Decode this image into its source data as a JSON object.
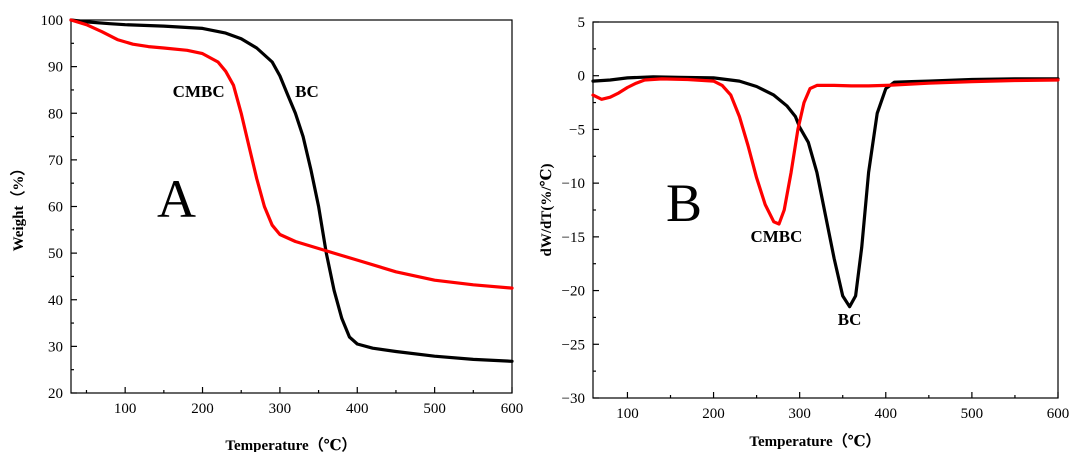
{
  "chart_data": [
    {
      "type": "line",
      "panel_label": "A",
      "xlabel": "Temperature（℃）",
      "ylabel": "Weight（%）",
      "xlim": [
        30,
        600
      ],
      "ylim": [
        20,
        100
      ],
      "xticks": [
        100,
        200,
        300,
        400,
        500,
        600
      ],
      "yticks": [
        20,
        30,
        40,
        50,
        60,
        70,
        80,
        90,
        100
      ],
      "grid": false,
      "legend": "none",
      "series": [
        {
          "name": "BC",
          "color": "#000000",
          "x": [
            30,
            50,
            80,
            100,
            150,
            200,
            230,
            250,
            270,
            290,
            300,
            310,
            320,
            330,
            340,
            350,
            360,
            370,
            380,
            390,
            400,
            420,
            450,
            500,
            550,
            600
          ],
          "y": [
            100,
            99.6,
            99.2,
            99,
            98.7,
            98.2,
            97.2,
            96,
            94,
            91,
            88,
            84,
            80,
            75,
            68,
            60,
            50,
            42,
            36,
            32,
            30.5,
            29.6,
            28.9,
            27.9,
            27.2,
            26.8
          ]
        },
        {
          "name": "CMBC",
          "color": "#ff0000",
          "x": [
            30,
            50,
            70,
            90,
            110,
            130,
            150,
            180,
            200,
            220,
            230,
            240,
            250,
            260,
            270,
            280,
            290,
            300,
            320,
            350,
            380,
            400,
            450,
            500,
            550,
            600
          ],
          "y": [
            100,
            99,
            97.5,
            95.8,
            94.8,
            94.3,
            94,
            93.5,
            92.8,
            91,
            89,
            86,
            80,
            73,
            66,
            60,
            56,
            54,
            52.5,
            51,
            49.5,
            48.5,
            46,
            44.2,
            43.2,
            42.5
          ]
        }
      ],
      "annotations": [
        {
          "text": "CMBC",
          "x": 195,
          "y": 83.5
        },
        {
          "text": "BC",
          "x": 335,
          "y": 83.5
        }
      ]
    },
    {
      "type": "line",
      "panel_label": "B",
      "xlabel": "Temperature（℃）",
      "ylabel": "dW/dT(%/℃)",
      "xlim": [
        60,
        600
      ],
      "ylim": [
        -30,
        5
      ],
      "xticks": [
        100,
        200,
        300,
        400,
        500,
        600
      ],
      "yticks": [
        5,
        0,
        -5,
        -10,
        -15,
        -20,
        -25,
        -30
      ],
      "grid": false,
      "legend": "none",
      "series": [
        {
          "name": "BC",
          "color": "#000000",
          "x": [
            60,
            80,
            100,
            130,
            160,
            200,
            230,
            250,
            270,
            285,
            295,
            300,
            310,
            320,
            330,
            340,
            350,
            358,
            365,
            372,
            380,
            390,
            400,
            410,
            430,
            450,
            500,
            550,
            600
          ],
          "y": [
            -0.5,
            -0.4,
            -0.2,
            -0.1,
            -0.15,
            -0.2,
            -0.5,
            -1,
            -1.8,
            -2.8,
            -3.8,
            -4.8,
            -6.2,
            -9,
            -13,
            -17,
            -20.5,
            -21.5,
            -20.5,
            -16,
            -9,
            -3.5,
            -1.2,
            -0.6,
            -0.55,
            -0.5,
            -0.35,
            -0.3,
            -0.3
          ]
        },
        {
          "name": "CMBC",
          "color": "#ff0000",
          "x": [
            60,
            70,
            80,
            90,
            100,
            110,
            120,
            140,
            170,
            200,
            210,
            220,
            230,
            240,
            250,
            260,
            270,
            276,
            282,
            290,
            298,
            305,
            312,
            320,
            340,
            360,
            380,
            400,
            450,
            500,
            550,
            600
          ],
          "y": [
            -1.8,
            -2.2,
            -2,
            -1.6,
            -1.1,
            -0.7,
            -0.4,
            -0.3,
            -0.35,
            -0.5,
            -0.9,
            -1.8,
            -3.8,
            -6.5,
            -9.5,
            -12,
            -13.6,
            -13.8,
            -12.5,
            -9,
            -5,
            -2.5,
            -1.2,
            -0.9,
            -0.9,
            -0.95,
            -0.95,
            -0.9,
            -0.7,
            -0.55,
            -0.45,
            -0.4
          ]
        }
      ],
      "annotations": [
        {
          "text": "CMBC",
          "x": 273,
          "y": -15.5
        },
        {
          "text": "BC",
          "x": 358,
          "y": -23.2
        }
      ]
    }
  ]
}
